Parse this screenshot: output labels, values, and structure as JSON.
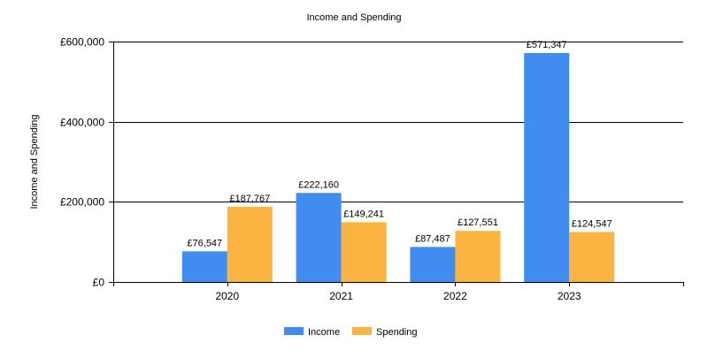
{
  "chart_data": {
    "type": "bar",
    "title": "Income and Spending",
    "xlabel": "",
    "ylabel": "Income and Spending",
    "categories": [
      "2020",
      "2021",
      "2022",
      "2023"
    ],
    "series": [
      {
        "name": "Income",
        "color": "#418CF0",
        "values": [
          76547,
          222160,
          87487,
          571347
        ],
        "labels": [
          "£76,547",
          "£222,160",
          "£87,487",
          "£571,347"
        ]
      },
      {
        "name": "Spending",
        "color": "#FCB441",
        "values": [
          187767,
          149241,
          127551,
          124547
        ],
        "labels": [
          "£187,767",
          "£149,241",
          "£127,551",
          "£124,547"
        ]
      }
    ],
    "ylim": [
      0,
      600000
    ],
    "yticks": [
      0,
      200000,
      400000,
      600000
    ],
    "ytick_labels": [
      "£0",
      "£200,000",
      "£400,000",
      "£600,000"
    ],
    "grid": true,
    "legend": "bottom-center"
  }
}
